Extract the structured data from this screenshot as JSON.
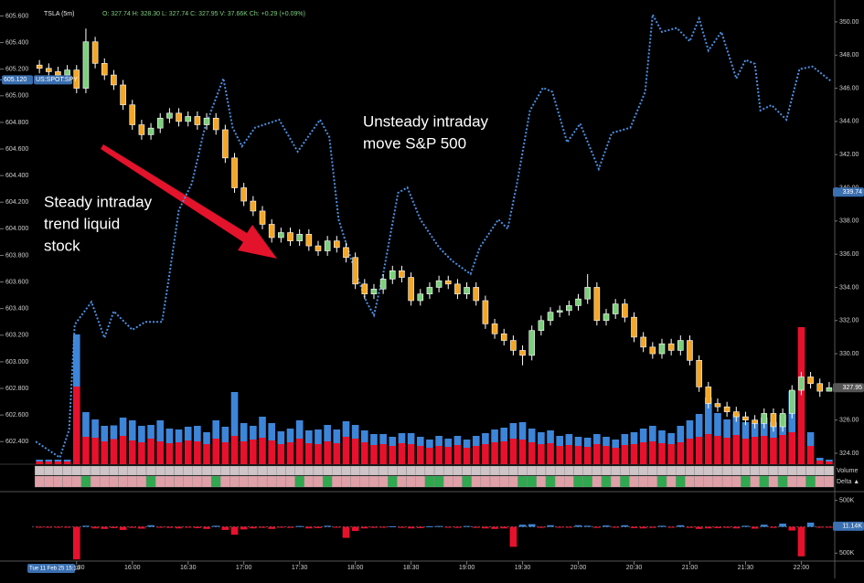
{
  "chart_data": {
    "type": "candlestick",
    "symbol": "TSLA (5m)",
    "quote": "O: 327.74 H: 328.30 L: 327.74 C: 327.95 V: 37.66K Ch: +0.29 (+0.09%)",
    "x": [
      910,
      915,
      920,
      925,
      930,
      935,
      940,
      945,
      950,
      955,
      960,
      965,
      970,
      975,
      980,
      985,
      990,
      995,
      1000,
      1005,
      1010,
      1015,
      1020,
      1025,
      1030,
      1035,
      1040,
      1045,
      1050,
      1055,
      1060,
      1065,
      1070,
      1075,
      1080,
      1085,
      1090,
      1095,
      1100,
      1105,
      1110,
      1115,
      1120,
      1125,
      1130,
      1135,
      1140,
      1145,
      1150,
      1155,
      1160,
      1165,
      1170,
      1175,
      1180,
      1185,
      1190,
      1195,
      1200,
      1205,
      1210,
      1215,
      1220,
      1225,
      1230,
      1235,
      1240,
      1245,
      1250,
      1255,
      1260,
      1265,
      1270,
      1275,
      1280,
      1285,
      1290,
      1295,
      1300,
      1305,
      1310,
      1315,
      1320,
      1325,
      1330,
      1335
    ],
    "open": [
      347.4,
      347.2,
      347.0,
      346.8,
      347.1,
      346.0,
      348.8,
      347.5,
      346.8,
      346.2,
      345.0,
      343.8,
      343.2,
      343.6,
      344.2,
      344.5,
      344.0,
      344.3,
      343.8,
      344.2,
      343.5,
      341.8,
      340.0,
      339.2,
      338.6,
      337.8,
      337.0,
      337.3,
      336.8,
      337.2,
      336.5,
      336.2,
      336.8,
      336.4,
      335.8,
      334.2,
      333.6,
      333.9,
      334.5,
      335.0,
      334.6,
      333.2,
      333.6,
      334.0,
      334.4,
      334.2,
      333.6,
      334.0,
      333.2,
      331.8,
      331.2,
      330.8,
      330.2,
      329.9,
      331.4,
      332.0,
      332.5,
      332.6,
      332.9,
      333.3,
      334.0,
      332.0,
      332.4,
      333.0,
      332.2,
      331.0,
      330.4,
      330.0,
      330.6,
      330.2,
      330.8,
      329.6,
      328.0,
      327.0,
      326.8,
      326.5,
      326.2,
      326.0,
      325.8,
      326.4,
      325.6,
      326.4,
      327.8,
      328.6,
      328.2,
      327.74
    ],
    "high": [
      347.7,
      347.5,
      347.3,
      347.4,
      347.4,
      349.6,
      349.1,
      347.8,
      347.1,
      346.5,
      345.3,
      344.1,
      343.9,
      344.5,
      344.8,
      344.8,
      344.6,
      344.6,
      344.5,
      344.5,
      343.8,
      342.1,
      340.3,
      339.5,
      338.9,
      338.1,
      337.6,
      337.6,
      337.5,
      337.5,
      336.8,
      337.1,
      337.1,
      336.7,
      336.1,
      334.5,
      334.2,
      334.8,
      335.3,
      335.3,
      334.9,
      333.9,
      334.3,
      334.7,
      334.7,
      334.5,
      334.3,
      334.3,
      333.5,
      332.1,
      331.5,
      331.1,
      330.5,
      331.7,
      332.3,
      332.8,
      332.9,
      333.2,
      333.6,
      334.8,
      334.3,
      332.7,
      333.3,
      333.3,
      332.5,
      331.3,
      330.7,
      330.9,
      330.9,
      331.1,
      331.1,
      329.9,
      328.3,
      327.3,
      327.1,
      326.8,
      326.5,
      326.3,
      326.7,
      326.7,
      326.7,
      328.1,
      328.9,
      328.9,
      328.5,
      328.3
    ],
    "low": [
      346.9,
      346.7,
      346.5,
      346.5,
      345.7,
      345.7,
      347.2,
      346.5,
      345.9,
      344.7,
      343.5,
      342.9,
      342.9,
      343.3,
      343.9,
      343.7,
      343.7,
      343.5,
      343.5,
      343.2,
      341.5,
      339.7,
      338.9,
      338.3,
      337.5,
      336.7,
      336.7,
      336.5,
      336.5,
      336.2,
      335.9,
      335.9,
      336.1,
      335.5,
      333.9,
      333.3,
      333.3,
      333.6,
      334.2,
      334.3,
      332.9,
      332.9,
      333.3,
      333.7,
      333.9,
      333.3,
      333.3,
      332.9,
      331.5,
      330.9,
      330.5,
      329.9,
      329.3,
      329.6,
      331.1,
      331.7,
      332.2,
      332.3,
      332.6,
      333.0,
      331.7,
      331.7,
      332.1,
      331.9,
      330.7,
      330.1,
      329.7,
      329.7,
      329.9,
      329.9,
      329.3,
      327.7,
      326.7,
      326.5,
      326.2,
      325.9,
      325.7,
      325.5,
      325.5,
      325.3,
      325.3,
      326.1,
      327.5,
      327.9,
      327.4,
      327.74
    ],
    "close": [
      347.2,
      347.0,
      346.8,
      347.1,
      346.0,
      348.8,
      347.5,
      346.8,
      346.2,
      345.0,
      343.8,
      343.2,
      343.6,
      344.2,
      344.5,
      344.0,
      344.3,
      343.8,
      344.2,
      343.5,
      341.8,
      340.0,
      339.2,
      338.6,
      337.8,
      337.0,
      337.3,
      336.8,
      337.2,
      336.5,
      336.2,
      336.8,
      336.4,
      335.8,
      334.2,
      333.6,
      333.9,
      334.5,
      335.0,
      334.6,
      333.2,
      333.6,
      334.0,
      334.4,
      334.2,
      333.6,
      334.0,
      333.2,
      331.8,
      331.2,
      330.8,
      330.2,
      329.9,
      331.4,
      332.0,
      332.5,
      332.6,
      332.9,
      333.3,
      334.0,
      332.0,
      332.4,
      333.0,
      332.2,
      331.0,
      330.4,
      330.0,
      330.6,
      330.2,
      330.8,
      329.6,
      328.0,
      327.0,
      326.8,
      326.5,
      326.2,
      326.0,
      325.8,
      326.4,
      325.6,
      326.4,
      327.8,
      328.6,
      328.2,
      327.74,
      327.95
    ],
    "up_color": "#7ccf7c",
    "down_color": "#f5a623",
    "wick_color": "#ffffff",
    "xlim": [
      906,
      1338
    ],
    "xticks": [
      {
        "value": 930,
        "label": "15:30"
      },
      {
        "value": 960,
        "label": "16:00"
      },
      {
        "value": 990,
        "label": "16:30"
      },
      {
        "value": 1020,
        "label": "17:00"
      },
      {
        "value": 1050,
        "label": "17:30"
      },
      {
        "value": 1080,
        "label": "18:00"
      },
      {
        "value": 1110,
        "label": "18:30"
      },
      {
        "value": 1140,
        "label": "19:00"
      },
      {
        "value": 1170,
        "label": "19:30"
      },
      {
        "value": 1200,
        "label": "20:00"
      },
      {
        "value": 1230,
        "label": "20:30"
      },
      {
        "value": 1260,
        "label": "21:00"
      },
      {
        "value": 1290,
        "label": "21:30"
      },
      {
        "value": 1320,
        "label": "22:00"
      }
    ],
    "y2lim": [
      323.34,
      351.32
    ],
    "y2ticks": [
      {
        "value": 324,
        "label": "324.00"
      },
      {
        "value": 326,
        "label": "326.00"
      },
      {
        "value": 328,
        "label": "328.00"
      },
      {
        "value": 330,
        "label": "330.00"
      },
      {
        "value": 332,
        "label": "332.00"
      },
      {
        "value": 334,
        "label": "334.00"
      },
      {
        "value": 336,
        "label": "336.00"
      },
      {
        "value": 338,
        "label": "338.00"
      },
      {
        "value": 340,
        "label": "340.00"
      },
      {
        "value": 342,
        "label": "342.00"
      },
      {
        "value": 344,
        "label": "344.00"
      },
      {
        "value": 346,
        "label": "346.00"
      },
      {
        "value": 348,
        "label": "348.00"
      },
      {
        "value": 350,
        "label": "350.00"
      }
    ],
    "ylim": [
      602.23,
      605.72
    ],
    "yticks": [
      {
        "value": 602.4,
        "label": "602.400"
      },
      {
        "value": 602.6,
        "label": "602.600"
      },
      {
        "value": 602.8,
        "label": "602.800"
      },
      {
        "value": 603.0,
        "label": "603.000"
      },
      {
        "value": 603.2,
        "label": "603.200"
      },
      {
        "value": 603.4,
        "label": "603.400"
      },
      {
        "value": 603.6,
        "label": "603.600"
      },
      {
        "value": 603.8,
        "label": "603.800"
      },
      {
        "value": 604.0,
        "label": "604.000"
      },
      {
        "value": 604.2,
        "label": "604.200"
      },
      {
        "value": 604.4,
        "label": "604.400"
      },
      {
        "value": 604.6,
        "label": "604.600"
      },
      {
        "value": 604.8,
        "label": "604.800"
      },
      {
        "value": 605.0,
        "label": "605.000"
      },
      {
        "value": 605.2,
        "label": "605.200"
      },
      {
        "value": 605.4,
        "label": "605.400"
      },
      {
        "value": 605.6,
        "label": "605.600"
      }
    ],
    "overlay": {
      "name": "US:SPOT:SPY",
      "color": "#4a90e2",
      "x": [
        908,
        921,
        926,
        929,
        938,
        945,
        950,
        960,
        967,
        976,
        980,
        985,
        992,
        999,
        1009,
        1014,
        1019,
        1026,
        1039,
        1049,
        1056,
        1061,
        1066,
        1071,
        1078,
        1086,
        1090,
        1095,
        1103,
        1108,
        1115,
        1125,
        1132,
        1142,
        1147,
        1157,
        1162,
        1167,
        1174,
        1181,
        1186,
        1194,
        1201,
        1211,
        1218,
        1228,
        1236,
        1240,
        1245,
        1253,
        1260,
        1265,
        1270,
        1277,
        1285,
        1290,
        1295,
        1298,
        1304,
        1312,
        1319,
        1326,
        1336
      ],
      "values": [
        602.4,
        602.28,
        602.49,
        603.28,
        603.45,
        603.18,
        603.38,
        603.24,
        603.3,
        603.3,
        603.66,
        604.14,
        604.34,
        604.76,
        605.13,
        604.76,
        604.62,
        604.76,
        604.82,
        604.58,
        604.72,
        604.82,
        604.69,
        604.07,
        603.76,
        603.45,
        603.35,
        603.66,
        604.27,
        604.31,
        604.07,
        603.86,
        603.76,
        603.66,
        603.86,
        604.07,
        604.0,
        604.34,
        604.89,
        605.06,
        605.03,
        604.65,
        604.79,
        604.45,
        604.72,
        604.76,
        605.03,
        605.61,
        605.48,
        605.51,
        605.41,
        605.58,
        605.34,
        605.48,
        605.13,
        605.27,
        605.24,
        604.89,
        604.93,
        604.82,
        605.2,
        605.22,
        605.11
      ]
    },
    "spy_tag": {
      "value": 605.12,
      "label": "605.120"
    },
    "right_tag": {
      "value": 339.74,
      "label": "339.74"
    },
    "price_tag": {
      "value": 327.95,
      "label": "327.95"
    },
    "volume": {
      "ylim": [
        0,
        400
      ],
      "sell_color": "#e8112d",
      "buy_color": "#3d85d8",
      "sell": [
        6,
        6,
        6,
        6,
        170,
        60,
        58,
        50,
        55,
        62,
        52,
        48,
        56,
        50,
        46,
        48,
        52,
        50,
        44,
        56,
        48,
        62,
        50,
        54,
        58,
        52,
        44,
        48,
        56,
        46,
        44,
        50,
        46,
        60,
        56,
        48,
        42,
        44,
        40,
        46,
        44,
        40,
        36,
        40,
        38,
        42,
        36,
        40,
        44,
        48,
        50,
        56,
        54,
        48,
        44,
        46,
        40,
        42,
        40,
        38,
        44,
        40,
        36,
        42,
        44,
        48,
        50,
        46,
        44,
        48,
        56,
        60,
        66,
        62,
        58,
        64,
        56,
        60,
        62,
        58,
        64,
        70,
        300,
        40,
        8,
        6
      ],
      "buy": [
        4,
        4,
        4,
        4,
        114,
        54,
        40,
        34,
        30,
        40,
        44,
        36,
        30,
        46,
        32,
        28,
        30,
        34,
        26,
        40,
        34,
        96,
        40,
        30,
        46,
        38,
        28,
        30,
        40,
        28,
        32,
        36,
        30,
        34,
        30,
        26,
        24,
        22,
        20,
        22,
        24,
        20,
        18,
        22,
        18,
        20,
        18,
        22,
        24,
        28,
        30,
        34,
        38,
        30,
        26,
        28,
        22,
        24,
        20,
        20,
        22,
        20,
        18,
        24,
        26,
        30,
        34,
        28,
        24,
        36,
        40,
        50,
        80,
        50,
        40,
        46,
        36,
        30,
        40,
        34,
        44,
        90,
        0,
        30,
        6,
        4
      ]
    },
    "panel_labels": [
      "Volume",
      "Delta ▲"
    ],
    "delta": {
      "ylim": [
        -650,
        650
      ],
      "pos_color": "#2fa84f",
      "neg_color": "#e0a0a8",
      "yticks": [
        {
          "value": 500,
          "label": "500K"
        },
        {
          "value": -500,
          "label": "500K"
        }
      ],
      "tag": {
        "value": 11.14,
        "label": "11.14K"
      },
      "values": [
        0,
        0,
        0,
        0,
        -620,
        20,
        -30,
        -40,
        -25,
        -60,
        -20,
        -35,
        30,
        -15,
        -20,
        -30,
        -10,
        -25,
        -40,
        20,
        -60,
        -150,
        -50,
        -30,
        -20,
        -40,
        -10,
        -20,
        15,
        -30,
        -25,
        20,
        -15,
        -210,
        -80,
        -30,
        -20,
        -15,
        10,
        -20,
        -30,
        -25,
        10,
        15,
        -10,
        -20,
        15,
        -20,
        -30,
        -40,
        -30,
        -380,
        40,
        50,
        -20,
        30,
        -15,
        -10,
        30,
        20,
        -20,
        25,
        -10,
        30,
        -25,
        -30,
        -20,
        20,
        -15,
        30,
        -20,
        -40,
        -30,
        -25,
        -20,
        -30,
        20,
        -35,
        40,
        -20,
        60,
        -70,
        -560,
        80,
        -10,
        0
      ]
    },
    "date_label": "Tue 11 Feb 25 15:10",
    "annotations": [
      [
        "Steady intraday",
        "trend liquid",
        "stock"
      ],
      [
        "Unsteady intraday",
        "move S&P 500"
      ]
    ]
  }
}
